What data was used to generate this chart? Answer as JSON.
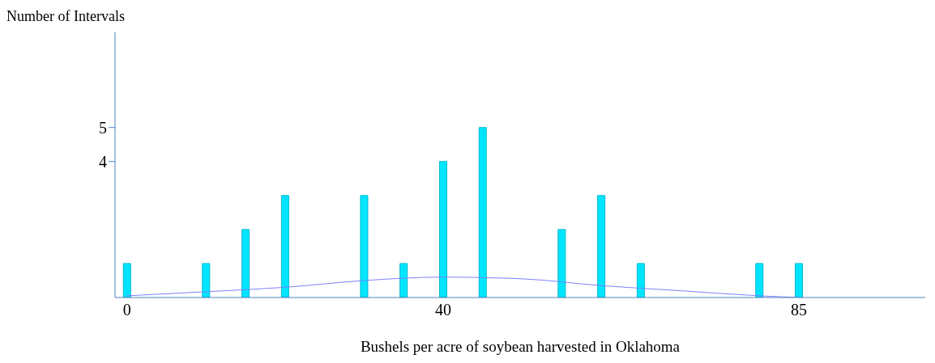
{
  "chart_data": {
    "type": "bar",
    "ylabel": "Number of Intervals",
    "xlabel": "Bushels per acre of soybean harvested in Oklahoma",
    "xlim": [
      -1.5,
      101
    ],
    "xticks": [
      0,
      40,
      85
    ],
    "ylim": [
      0,
      7.8
    ],
    "yticks": [
      4,
      5
    ],
    "grid": false,
    "legend": false,
    "series": [
      {
        "color": "#00e5ff",
        "x": [
          0,
          10,
          15,
          20,
          30,
          35,
          40,
          45,
          55,
          60,
          65,
          80,
          85
        ],
        "values": [
          1,
          1,
          2,
          3,
          3,
          1,
          4,
          5,
          2,
          3,
          1,
          1,
          1
        ]
      },
      {
        "type": "line",
        "color": "#8080ff",
        "marker": "none",
        "x": [
          0,
          10,
          20,
          30,
          40,
          50,
          60,
          70,
          80,
          85
        ],
        "values": [
          0.05,
          0.17,
          0.3,
          0.5,
          0.6,
          0.55,
          0.35,
          0.2,
          0.05,
          0
        ]
      }
    ]
  }
}
